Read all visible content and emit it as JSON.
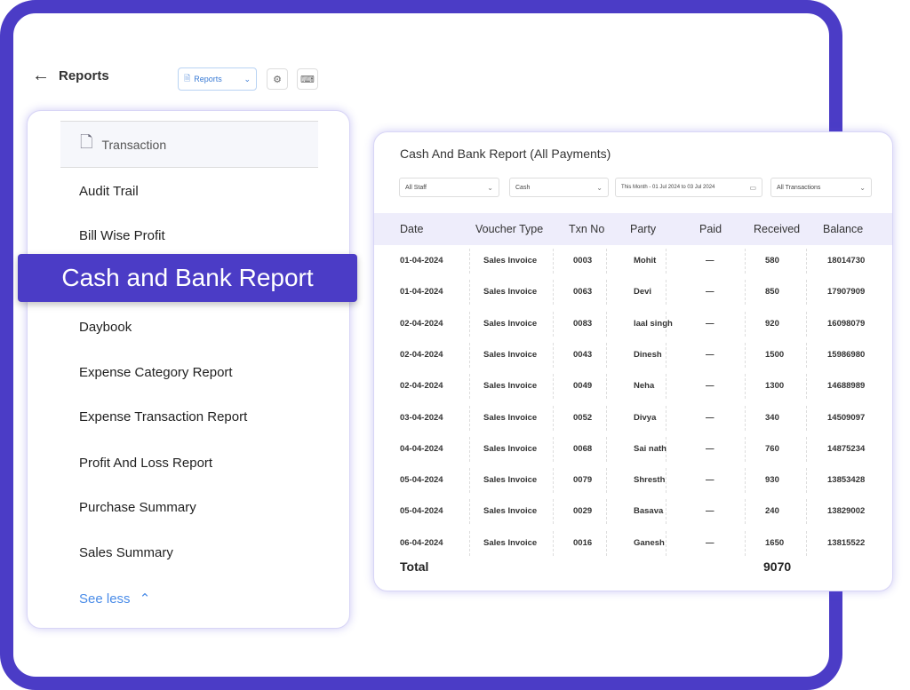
{
  "header": {
    "back_icon": "arrow-left-icon",
    "title": "Reports",
    "select_label": "Reports"
  },
  "sidebar": {
    "active_section": "Transaction",
    "items": [
      "Audit Trail",
      "Bill Wise Profit",
      "Daybook",
      "Expense Category Report",
      "Expense Transaction Report",
      "Profit And Loss Report",
      "Purchase Summary",
      "Sales Summary"
    ],
    "see_less": "See less"
  },
  "banner": "Cash and Bank Report",
  "report": {
    "title": "Cash And Bank Report (All Payments)",
    "filters": {
      "staff": "All Staff",
      "account": "Cash",
      "date_range": "This Month - 01 Jul 2024 to 03 Jul 2024",
      "transactions": "All Transactions"
    },
    "columns": [
      "Date",
      "Voucher Type",
      "Txn No",
      "Party",
      "Paid",
      "Received",
      "Balance"
    ],
    "rows": [
      [
        "01-04-2024",
        "Sales Invoice",
        "0003",
        "Mohit",
        "—",
        "580",
        "18014730"
      ],
      [
        "01-04-2024",
        "Sales Invoice",
        "0063",
        "Devi",
        "—",
        "850",
        "17907909"
      ],
      [
        "02-04-2024",
        "Sales Invoice",
        "0083",
        "laal singh",
        "—",
        "920",
        "16098079"
      ],
      [
        "02-04-2024",
        "Sales Invoice",
        "0043",
        "Dinesh",
        "—",
        "1500",
        "15986980"
      ],
      [
        "02-04-2024",
        "Sales Invoice",
        "0049",
        "Neha",
        "—",
        "1300",
        "14688989"
      ],
      [
        "03-04-2024",
        "Sales Invoice",
        "0052",
        "Divya",
        "—",
        "340",
        "14509097"
      ],
      [
        "04-04-2024",
        "Sales Invoice",
        "0068",
        "Sai nath",
        "—",
        "760",
        "14875234"
      ],
      [
        "05-04-2024",
        "Sales Invoice",
        "0079",
        "Shresth",
        "—",
        "930",
        "13853428"
      ],
      [
        "05-04-2024",
        "Sales Invoice",
        "0029",
        "Basava",
        "—",
        "240",
        "13829002"
      ],
      [
        "06-04-2024",
        "Sales Invoice",
        "0016",
        "Ganesh",
        "—",
        "1650",
        "13815522"
      ]
    ],
    "total_label": "Total",
    "total_received": "9070"
  },
  "colors": {
    "accent": "#4b3cc6",
    "link": "#4a8ce8",
    "header_bg": "#eeedfb"
  }
}
